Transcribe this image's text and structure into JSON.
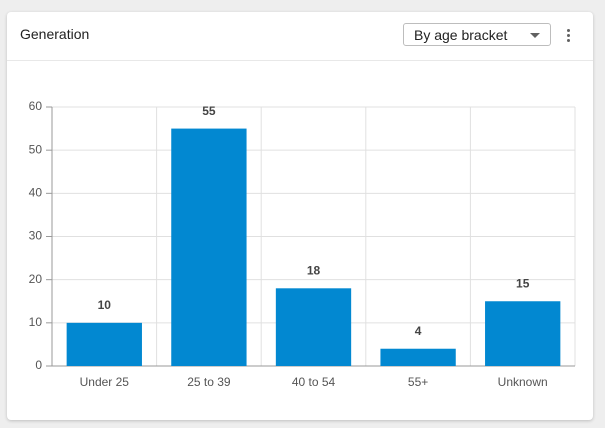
{
  "header": {
    "title": "Generation",
    "dropdown": "By age bracket"
  },
  "chart_data": {
    "type": "bar",
    "categories": [
      "Under 25",
      "25 to 39",
      "40 to 54",
      "55+",
      "Unknown"
    ],
    "values": [
      10,
      55,
      18,
      4,
      15
    ],
    "color": "#0288d1",
    "ylim": [
      0,
      60
    ],
    "yticks": [
      0,
      10,
      20,
      30,
      40,
      50,
      60
    ],
    "grid": true
  }
}
